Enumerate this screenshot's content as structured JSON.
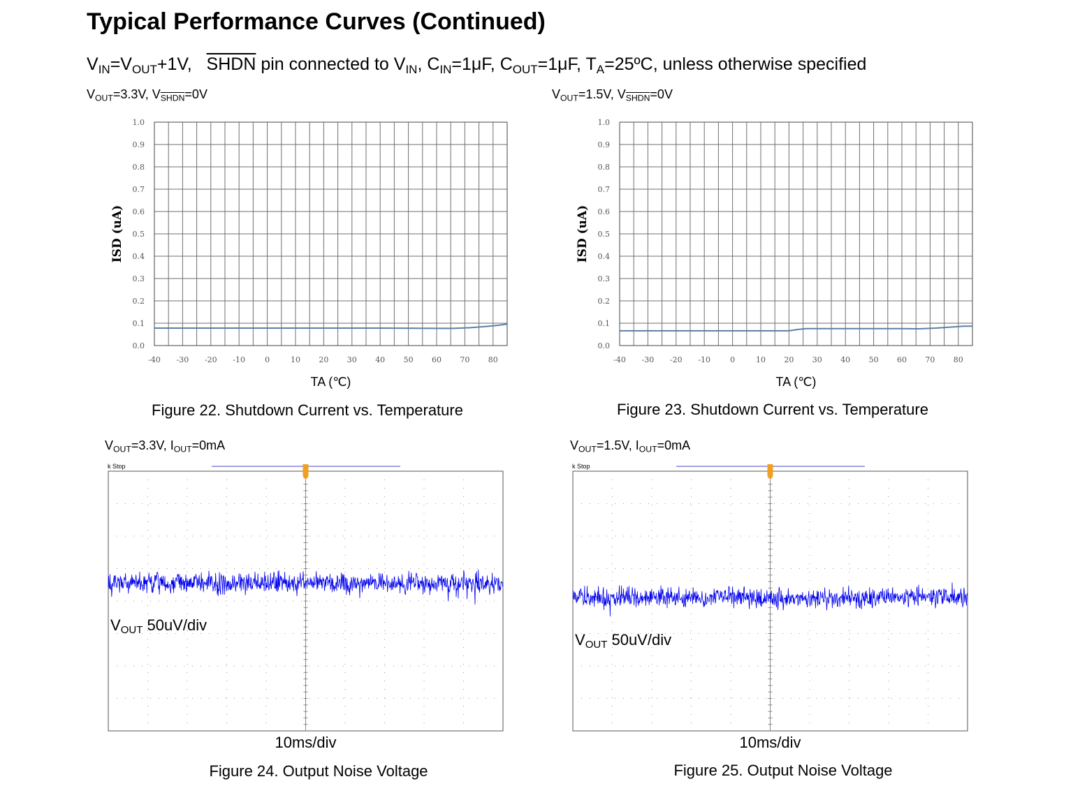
{
  "header": {
    "title": "Typical Performance Curves (Continued)",
    "conditions": {
      "vin": "V",
      "vin_sub": "IN",
      "eq1": "=V",
      "vout_sub": "OUT",
      "plus": "+1V,",
      "shdn": "SHDN",
      "pin_text": " pin connected to V",
      "pin_sub": "IN",
      "cin": ", C",
      "cin_sub": "IN",
      "cin_val": "=1μF, C",
      "cout_sub": "OUT",
      "cout_val": "=1μF, T",
      "ta_sub": "A",
      "ta_val": "=25ºC, unless otherwise specified"
    }
  },
  "figures": [
    {
      "cond_a": "V",
      "cond_a_sub": "OUT",
      "cond_b": "=3.3V, V",
      "cond_b_sub": "SHDN",
      "cond_c": "=0V",
      "caption": "Figure 22. Shutdown Current vs. Temperature"
    },
    {
      "cond_a": "V",
      "cond_a_sub": "OUT",
      "cond_b": "=1.5V, V",
      "cond_b_sub": "SHDN",
      "cond_c": "=0V",
      "caption": "Figure 23. Shutdown Current vs. Temperature"
    },
    {
      "cond_a": "V",
      "cond_a_sub": "OUT",
      "cond_b": "=3.3V, I",
      "cond_b_sub": "OUT",
      "cond_c": "=0mA",
      "caption": "Figure 24. Output Noise Voltage",
      "stop_label": "k Stop",
      "trace_label": "V",
      "trace_label_sub": "OUT",
      "trace_label_rest": " 50uV/div",
      "timebase": "10ms/div"
    },
    {
      "cond_a": "V",
      "cond_a_sub": "OUT",
      "cond_b": "=1.5V, I",
      "cond_b_sub": "OUT",
      "cond_c": "=0mA",
      "caption": "Figure 25. Output Noise Voltage",
      "stop_label": "k Stop",
      "trace_label": "V",
      "trace_label_sub": "OUT",
      "trace_label_rest": " 50uV/div",
      "timebase": "10ms/div"
    }
  ],
  "chart_data": [
    {
      "type": "line",
      "title": "",
      "xlabel": "TA (℃)",
      "ylabel": "ISD (uA)",
      "xlim": [
        -40,
        85
      ],
      "ylim": [
        0.0,
        1.0
      ],
      "x_ticks": [
        -40,
        -30,
        -20,
        -10,
        0,
        10,
        20,
        30,
        40,
        50,
        60,
        70,
        80
      ],
      "y_ticks": [
        "0.0",
        "0.1",
        "0.2",
        "0.3",
        "0.4",
        "0.5",
        "0.6",
        "0.7",
        "0.8",
        "0.9",
        "1.0"
      ],
      "grid": true,
      "line_color": "#5b7fa6",
      "series": [
        {
          "x": [
            -40,
            0,
            40,
            60,
            66,
            72,
            78,
            82,
            85
          ],
          "y": [
            0.078,
            0.078,
            0.078,
            0.077,
            0.077,
            0.08,
            0.086,
            0.091,
            0.096
          ]
        }
      ]
    },
    {
      "type": "line",
      "title": "",
      "xlabel": "TA (℃)",
      "ylabel": "ISD (uA)",
      "xlim": [
        -40,
        85
      ],
      "ylim": [
        0.0,
        1.0
      ],
      "x_ticks": [
        -40,
        -30,
        -20,
        -10,
        0,
        10,
        20,
        30,
        40,
        50,
        60,
        70,
        80
      ],
      "y_ticks": [
        "0.0",
        "0.1",
        "0.2",
        "0.3",
        "0.4",
        "0.5",
        "0.6",
        "0.7",
        "0.8",
        "0.9",
        "1.0"
      ],
      "grid": true,
      "line_color": "#5b7fa6",
      "series": [
        {
          "x": [
            -40,
            0,
            15,
            20,
            23,
            26,
            40,
            60,
            66,
            72,
            78,
            82,
            85
          ],
          "y": [
            0.066,
            0.066,
            0.066,
            0.066,
            0.072,
            0.076,
            0.076,
            0.076,
            0.075,
            0.078,
            0.083,
            0.087,
            0.087
          ]
        }
      ]
    }
  ],
  "scope_colors": {
    "trace": "#0000ee",
    "grid": "#999999",
    "trigger": "#f0a020"
  }
}
